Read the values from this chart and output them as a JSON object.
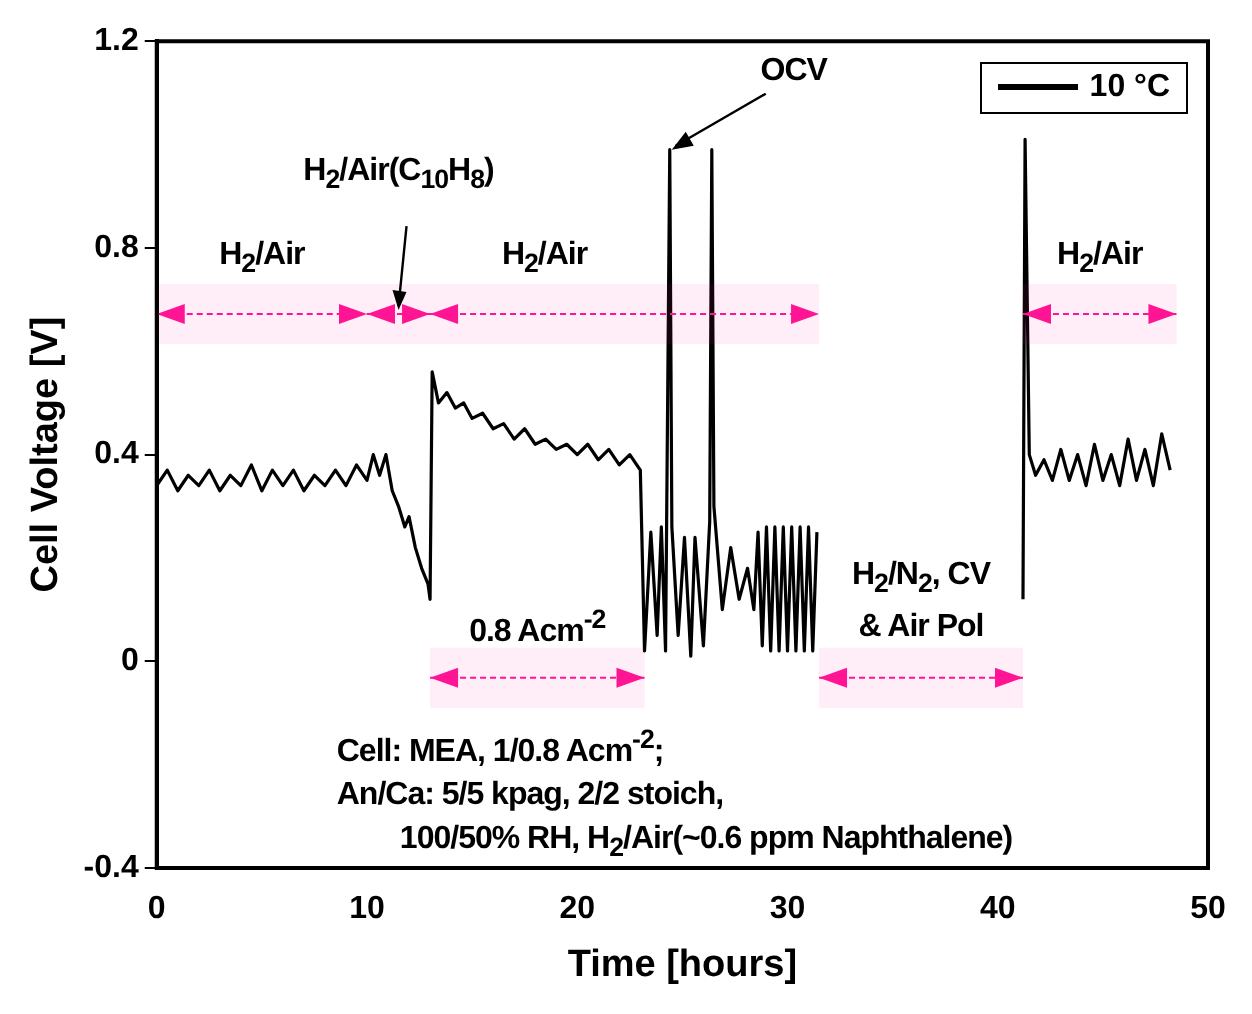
{
  "chart_data": {
    "type": "line",
    "xlabel": "Time [hours]",
    "ylabel": "Cell Voltage [V]",
    "x": [
      0,
      0.5,
      1,
      1.5,
      2,
      2.5,
      3,
      3.5,
      4,
      4.5,
      5,
      5.5,
      6,
      6.5,
      7,
      7.5,
      8,
      8.5,
      9,
      9.5,
      10,
      10.3,
      10.6,
      10.9,
      11.2,
      11.5,
      11.8,
      12,
      12.3,
      12.6,
      12.9,
      13,
      13.1,
      13.4,
      13.8,
      14.2,
      14.6,
      15,
      15.5,
      16,
      16.5,
      17,
      17.5,
      18,
      18.5,
      19,
      19.5,
      20,
      20.5,
      21,
      21.5,
      22,
      22.5,
      23,
      23.2,
      23.5,
      23.8,
      24,
      24.2,
      24.4,
      24.5,
      24.8,
      25.1,
      25.4,
      25.6,
      26,
      26.3,
      26.4,
      26.5,
      26.9,
      27.3,
      27.7,
      28.1,
      28.4,
      28.6,
      28.8,
      29,
      29.2,
      29.4,
      29.6,
      29.8,
      30,
      30.2,
      30.4,
      30.6,
      30.8,
      31,
      31.2,
      31.4,
      35,
      41.2,
      41.3,
      41.5,
      41.8,
      42.2,
      42.6,
      43,
      43.4,
      43.8,
      44.2,
      44.6,
      45,
      45.4,
      45.8,
      46.2,
      46.6,
      47,
      47.4,
      47.8,
      48.2
    ],
    "series": [
      {
        "name": "10 °C",
        "color": "#000000",
        "values": [
          0.34,
          0.37,
          0.33,
          0.36,
          0.34,
          0.37,
          0.33,
          0.36,
          0.34,
          0.38,
          0.33,
          0.37,
          0.34,
          0.37,
          0.33,
          0.36,
          0.34,
          0.37,
          0.34,
          0.38,
          0.35,
          0.4,
          0.36,
          0.4,
          0.33,
          0.3,
          0.26,
          0.28,
          0.22,
          0.18,
          0.15,
          0.12,
          0.56,
          0.5,
          0.52,
          0.49,
          0.5,
          0.47,
          0.48,
          0.45,
          0.46,
          0.43,
          0.45,
          0.42,
          0.43,
          0.41,
          0.42,
          0.4,
          0.42,
          0.39,
          0.41,
          0.38,
          0.4,
          0.37,
          0.02,
          0.25,
          0.05,
          0.26,
          0.02,
          0.99,
          0.26,
          0.05,
          0.24,
          0.01,
          0.24,
          0.03,
          0.27,
          0.99,
          0.3,
          0.1,
          0.22,
          0.12,
          0.18,
          0.1,
          0.25,
          0.03,
          0.26,
          0.02,
          0.26,
          0.02,
          0.26,
          0.02,
          0.26,
          0.02,
          0.26,
          0.02,
          0.26,
          0.02,
          0.25,
          null,
          0.12,
          1.01,
          0.4,
          0.36,
          0.39,
          0.35,
          0.41,
          0.35,
          0.4,
          0.34,
          0.42,
          0.35,
          0.4,
          0.34,
          0.43,
          0.35,
          0.41,
          0.34,
          0.44,
          0.37
        ]
      }
    ],
    "xlim": [
      0,
      50
    ],
    "xticks": [
      0,
      10,
      20,
      30,
      40,
      50
    ],
    "ylim": [
      -0.4,
      1.2
    ],
    "yticks": [
      -0.4,
      0.0,
      0.4,
      0.8,
      1.2
    ],
    "grid": false,
    "legend": "top right",
    "marker": "none",
    "line_style": "solid",
    "bands": [
      {
        "axis": "x",
        "from": 0,
        "to": 10,
        "label": "H$_{2}$/Air",
        "color": "#ff1493"
      },
      {
        "axis": "x",
        "from": 10,
        "to": 13,
        "label": "H$_{2}$/Air(C$_{10}$H$_{8}$)",
        "color": "#ff1493"
      },
      {
        "axis": "x",
        "from": 13,
        "to": 31.5,
        "label": "H$_{2}$/Air",
        "color": "#ff1493"
      },
      {
        "axis": "x",
        "from": 13,
        "to": 23.2,
        "label": "0.8 Acm$^{-2}$",
        "color": "#ff1493"
      },
      {
        "axis": "x",
        "from": 31.5,
        "to": 41.2,
        "label": "H$_{2}$/N$_{2}$, CV\n& Air Pol",
        "color": "#ff1493"
      },
      {
        "axis": "x",
        "from": 41.2,
        "to": 48.5,
        "label": "H$_{2}$/Air",
        "color": "#ff1493"
      }
    ],
    "annotations": [
      {
        "text": "OCV",
        "x": 24.4,
        "y": 0.99
      },
      "Cell: MEA, 1/0.8 Acm$^{-2}$;\nAn/Ca: 5/5 kpag, 2/2 stoich,\n        100/50% RH, H$_{2}$/Air(~0.6 ppm Naphthalene)"
    ]
  }
}
